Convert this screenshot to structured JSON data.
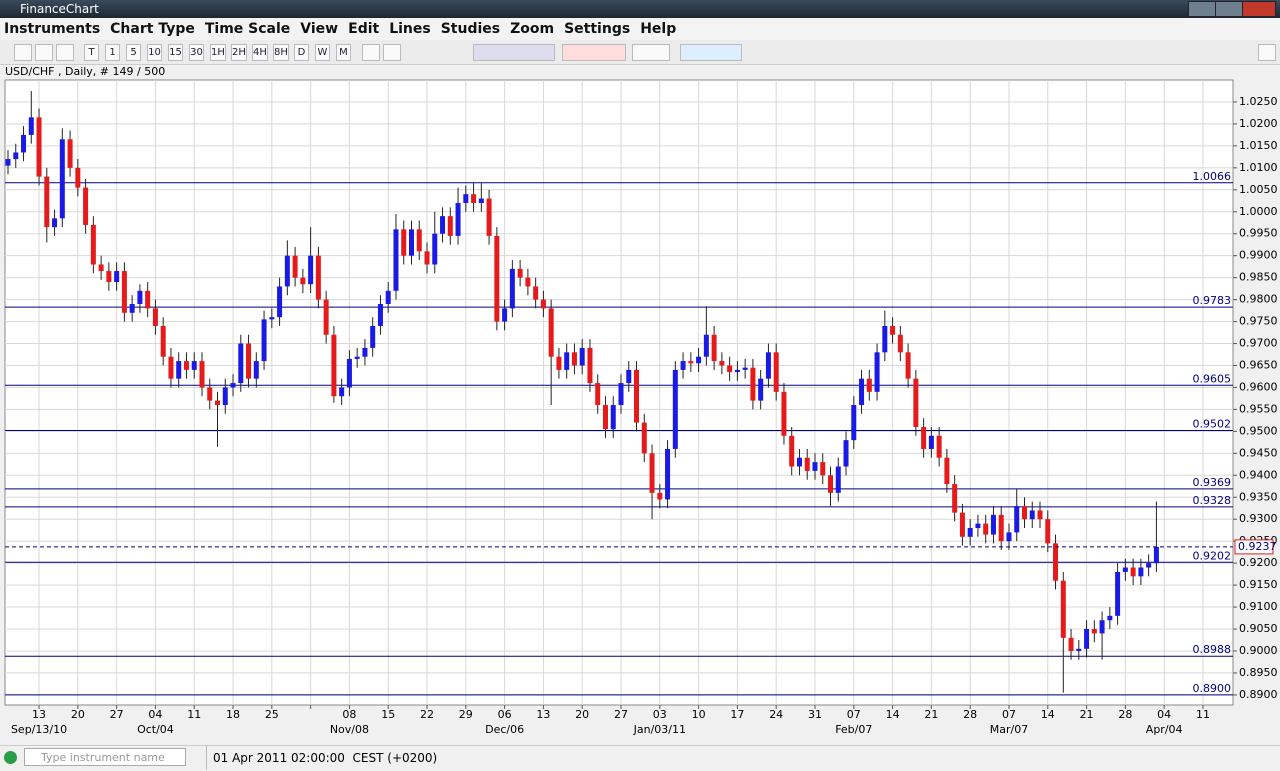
{
  "window": {
    "title": "FinanceChart"
  },
  "menu": [
    "Instruments",
    "Chart Type",
    "Time Scale",
    "View",
    "Edit",
    "Lines",
    "Studies",
    "Zoom",
    "Settings",
    "Help"
  ],
  "toolbar": [
    "T",
    "1",
    "5",
    "10",
    "15",
    "30",
    "1H",
    "2H",
    "4H",
    "8H",
    "D",
    "W",
    "M"
  ],
  "status": {
    "search_placeholder": "Type instrument name",
    "datetime": "01 Apr 2011 02:00:00  CEST (+0200)"
  },
  "chart_data": {
    "type": "candlestick",
    "title": "USD/CHF , Daily, # 149 / 500",
    "categories": [
      null,
      null,
      null,
      null,
      "13",
      null,
      null,
      null,
      null,
      "20",
      null,
      null,
      null,
      null,
      "27",
      null,
      null,
      null,
      null,
      "04",
      null,
      null,
      null,
      null,
      "11",
      null,
      null,
      null,
      null,
      "18",
      null,
      null,
      null,
      null,
      "25",
      null,
      null,
      null,
      null,
      null,
      null,
      null,
      null,
      null,
      "08",
      null,
      null,
      null,
      null,
      "15",
      null,
      null,
      null,
      null,
      "22",
      null,
      null,
      null,
      null,
      "29",
      null,
      null,
      null,
      null,
      "06",
      null,
      null,
      null,
      null,
      "13",
      null,
      null,
      null,
      null,
      "20",
      null,
      null,
      null,
      null,
      "27",
      null,
      null,
      null,
      null,
      "03",
      null,
      null,
      null,
      null,
      "10",
      null,
      null,
      null,
      null,
      "17",
      null,
      null,
      null,
      null,
      "24",
      null,
      null,
      null,
      null,
      "31",
      null,
      null,
      null,
      null,
      "07",
      null,
      null,
      null,
      null,
      "14",
      null,
      null,
      null,
      null,
      "21",
      null,
      null,
      null,
      null,
      "28",
      null,
      null,
      null,
      null,
      "07",
      null,
      null,
      null,
      null,
      "14",
      null,
      null,
      null,
      null,
      "21",
      null,
      null,
      null,
      null,
      "28",
      null,
      null,
      null,
      null,
      "04",
      null,
      null,
      null,
      null,
      "11",
      null,
      null,
      null,
      null
    ],
    "month_labels": [
      {
        "category": 4,
        "label": "Sep/13/10"
      },
      {
        "category": 19,
        "label": "Oct/04"
      },
      {
        "category": 44,
        "label": "Nov/08"
      },
      {
        "category": 64,
        "label": "Dec/06"
      },
      {
        "category": 84,
        "label": "Jan/03/11"
      },
      {
        "category": 109,
        "label": "Feb/07"
      },
      {
        "category": 129,
        "label": "Mar/07"
      },
      {
        "category": 149,
        "label": "Apr/04"
      }
    ],
    "open": [
      1.0105,
      1.012,
      1.0135,
      1.0175,
      1.0215,
      1.008,
      0.9965,
      0.9985,
      1.0165,
      1.01,
      1.0055,
      0.997,
      0.988,
      0.9865,
      0.984,
      0.9865,
      0.977,
      0.979,
      0.982,
      0.978,
      0.974,
      0.967,
      0.962,
      0.966,
      0.964,
      0.966,
      0.96,
      0.957,
      0.956,
      0.96,
      0.961,
      0.97,
      0.962,
      0.966,
      0.9755,
      0.976,
      0.983,
      0.99,
      0.985,
      0.9835,
      0.99,
      0.98,
      0.972,
      0.958,
      0.96,
      0.9665,
      0.967,
      0.969,
      0.974,
      0.979,
      0.982,
      0.996,
      0.99,
      0.996,
      0.991,
      0.988,
      0.995,
      0.999,
      0.9945,
      1.002,
      1.004,
      1.002,
      1.003,
      0.9945,
      0.975,
      0.978,
      0.987,
      0.985,
      0.983,
      0.98,
      0.978,
      0.967,
      0.964,
      0.968,
      0.965,
      0.969,
      0.961,
      0.956,
      0.9505,
      0.956,
      0.961,
      0.964,
      0.952,
      0.945,
      0.936,
      0.9345,
      0.946,
      0.964,
      0.966,
      0.9655,
      0.967,
      0.972,
      0.966,
      0.965,
      0.9635,
      0.964,
      0.9645,
      0.957,
      0.962,
      0.968,
      0.959,
      0.949,
      0.942,
      0.944,
      0.941,
      0.943,
      0.94,
      0.936,
      0.942,
      0.948,
      0.956,
      0.962,
      0.959,
      0.968,
      0.974,
      0.972,
      0.968,
      0.962,
      0.951,
      0.946,
      0.949,
      0.944,
      0.938,
      0.9315,
      0.926,
      0.928,
      0.929,
      0.9265,
      0.931,
      0.925,
      0.927,
      0.933,
      0.93,
      0.932,
      0.93,
      0.9245,
      0.916,
      0.903,
      0.9,
      0.9005,
      0.905,
      0.904,
      0.907,
      0.908,
      0.918,
      0.919,
      0.917,
      0.919,
      0.92,
      null,
      null,
      null,
      null,
      null,
      null,
      null,
      null,
      null,
      null
    ],
    "high": [
      1.014,
      1.0155,
      1.0195,
      1.0275,
      1.0235,
      1.01,
      1.0005,
      1.019,
      1.0185,
      1.012,
      1.0075,
      0.999,
      0.99,
      0.9885,
      0.9885,
      0.9885,
      0.981,
      0.9835,
      0.984,
      0.98,
      0.976,
      0.969,
      0.968,
      0.968,
      0.968,
      0.968,
      0.962,
      0.959,
      0.962,
      0.963,
      0.972,
      0.972,
      0.968,
      0.9775,
      0.978,
      0.985,
      0.9935,
      0.992,
      0.987,
      0.9965,
      0.992,
      0.982,
      0.974,
      0.962,
      0.9685,
      0.969,
      0.971,
      0.976,
      0.981,
      0.984,
      0.9995,
      0.998,
      0.998,
      0.998,
      0.993,
      1.0,
      1.001,
      1.001,
      1.0055,
      1.006,
      1.0065,
      1.0065,
      1.005,
      0.9965,
      0.98,
      0.989,
      0.989,
      0.987,
      0.985,
      0.982,
      0.98,
      0.969,
      0.97,
      0.97,
      0.971,
      0.971,
      0.963,
      0.958,
      0.958,
      0.963,
      0.966,
      0.966,
      0.954,
      0.947,
      0.938,
      0.948,
      0.966,
      0.968,
      0.968,
      0.969,
      0.9785,
      0.974,
      0.968,
      0.967,
      0.966,
      0.9665,
      0.9665,
      0.964,
      0.97,
      0.97,
      0.961,
      0.951,
      0.946,
      0.946,
      0.945,
      0.945,
      0.942,
      0.944,
      0.95,
      0.958,
      0.964,
      0.964,
      0.97,
      0.9775,
      0.976,
      0.974,
      0.97,
      0.964,
      0.953,
      0.951,
      0.951,
      0.946,
      0.94,
      0.9335,
      0.93,
      0.931,
      0.931,
      0.933,
      0.933,
      0.929,
      0.937,
      0.935,
      0.934,
      0.934,
      0.932,
      0.9265,
      0.918,
      0.905,
      0.9025,
      0.907,
      0.907,
      0.909,
      0.91,
      0.92,
      0.921,
      0.921,
      0.921,
      0.922,
      0.934,
      null,
      null,
      null,
      null,
      null,
      null,
      null,
      null,
      null,
      null
    ],
    "low": [
      1.0085,
      1.01,
      1.0115,
      1.0155,
      1.006,
      0.993,
      0.9945,
      0.9965,
      1.008,
      1.0035,
      0.995,
      0.986,
      0.9845,
      0.982,
      0.982,
      0.975,
      0.975,
      0.977,
      0.976,
      0.972,
      0.965,
      0.96,
      0.96,
      0.962,
      0.962,
      0.958,
      0.955,
      0.9465,
      0.954,
      0.958,
      0.959,
      0.96,
      0.96,
      0.964,
      0.9735,
      0.974,
      0.981,
      0.983,
      0.9815,
      0.9815,
      0.978,
      0.97,
      0.9565,
      0.956,
      0.958,
      0.9645,
      0.965,
      0.967,
      0.972,
      0.977,
      0.98,
      0.988,
      0.988,
      0.989,
      0.986,
      0.986,
      0.993,
      0.9925,
      0.9925,
      1.0,
      1.0,
      1.0,
      0.9925,
      0.973,
      0.973,
      0.976,
      0.983,
      0.981,
      0.978,
      0.976,
      0.956,
      0.962,
      0.962,
      0.963,
      0.963,
      0.959,
      0.954,
      0.9485,
      0.9485,
      0.954,
      0.959,
      0.95,
      0.943,
      0.93,
      0.9325,
      0.9325,
      0.944,
      0.962,
      0.9635,
      0.9635,
      0.965,
      0.964,
      0.963,
      0.9615,
      0.9615,
      0.962,
      0.955,
      0.955,
      0.96,
      0.957,
      0.947,
      0.94,
      0.94,
      0.939,
      0.939,
      0.938,
      0.933,
      0.934,
      0.94,
      0.946,
      0.954,
      0.957,
      0.957,
      0.966,
      0.97,
      0.966,
      0.96,
      0.949,
      0.944,
      0.944,
      0.942,
      0.936,
      0.9295,
      0.924,
      0.924,
      0.926,
      0.9245,
      0.9245,
      0.923,
      0.923,
      0.925,
      0.928,
      0.928,
      0.928,
      0.9225,
      0.914,
      0.8905,
      0.898,
      0.898,
      0.8985,
      0.902,
      0.898,
      0.905,
      0.906,
      0.916,
      0.915,
      0.915,
      0.917,
      0.918,
      null,
      null,
      null,
      null,
      null,
      null,
      null,
      null,
      null,
      null
    ],
    "close": [
      1.012,
      1.0135,
      1.0175,
      1.0215,
      1.008,
      0.9965,
      0.9985,
      1.0165,
      1.01,
      1.0055,
      0.997,
      0.988,
      0.9865,
      0.984,
      0.9865,
      0.977,
      0.979,
      0.982,
      0.978,
      0.974,
      0.967,
      0.962,
      0.966,
      0.964,
      0.966,
      0.96,
      0.957,
      0.956,
      0.96,
      0.961,
      0.97,
      0.962,
      0.966,
      0.9755,
      0.976,
      0.983,
      0.99,
      0.985,
      0.9835,
      0.99,
      0.98,
      0.972,
      0.958,
      0.96,
      0.9665,
      0.967,
      0.969,
      0.974,
      0.979,
      0.982,
      0.996,
      0.99,
      0.996,
      0.991,
      0.988,
      0.995,
      0.999,
      0.9945,
      1.002,
      1.004,
      1.002,
      1.003,
      0.9945,
      0.975,
      0.978,
      0.987,
      0.985,
      0.983,
      0.98,
      0.978,
      0.967,
      0.964,
      0.968,
      0.965,
      0.969,
      0.961,
      0.956,
      0.9505,
      0.956,
      0.961,
      0.964,
      0.952,
      0.945,
      0.936,
      0.9345,
      0.946,
      0.964,
      0.966,
      0.9655,
      0.967,
      0.972,
      0.966,
      0.965,
      0.9635,
      0.964,
      0.9645,
      0.957,
      0.962,
      0.968,
      0.959,
      0.949,
      0.942,
      0.944,
      0.941,
      0.943,
      0.94,
      0.936,
      0.942,
      0.948,
      0.956,
      0.962,
      0.959,
      0.968,
      0.974,
      0.972,
      0.968,
      0.962,
      0.951,
      0.946,
      0.949,
      0.944,
      0.938,
      0.9315,
      0.926,
      0.928,
      0.929,
      0.9265,
      0.931,
      0.925,
      0.927,
      0.933,
      0.93,
      0.932,
      0.93,
      0.9245,
      0.916,
      0.903,
      0.9,
      0.9005,
      0.905,
      0.904,
      0.907,
      0.908,
      0.918,
      0.919,
      0.917,
      0.919,
      0.92,
      0.9237,
      null,
      null,
      null,
      null,
      null,
      null,
      null,
      null,
      null,
      null
    ],
    "up_color": "#1a1ae6",
    "down_color": "#e61a1a",
    "level_color": "#000080",
    "grid": true,
    "ylim": [
      0.8877,
      1.03
    ],
    "yticks": [
      {
        "value": 0.89,
        "label": "0.8900"
      },
      {
        "value": 0.895,
        "label": "0.8950"
      },
      {
        "value": 0.9,
        "label": "0.9000"
      },
      {
        "value": 0.905,
        "label": "0.9050"
      },
      {
        "value": 0.91,
        "label": "0.9100"
      },
      {
        "value": 0.915,
        "label": "0.9150"
      },
      {
        "value": 0.92,
        "label": "0.9200"
      },
      {
        "value": 0.925,
        "label": "0.9250"
      },
      {
        "value": 0.93,
        "label": "0.9300"
      },
      {
        "value": 0.935,
        "label": "0.9350"
      },
      {
        "value": 0.94,
        "label": "0.9400"
      },
      {
        "value": 0.945,
        "label": "0.9450"
      },
      {
        "value": 0.95,
        "label": "0.9500"
      },
      {
        "value": 0.955,
        "label": "0.9550"
      },
      {
        "value": 0.96,
        "label": "0.9600"
      },
      {
        "value": 0.965,
        "label": "0.9650"
      },
      {
        "value": 0.97,
        "label": "0.9700"
      },
      {
        "value": 0.975,
        "label": "0.9750"
      },
      {
        "value": 0.98,
        "label": "0.9800"
      },
      {
        "value": 0.985,
        "label": "0.9850"
      },
      {
        "value": 0.99,
        "label": "0.9900"
      },
      {
        "value": 0.995,
        "label": "0.9950"
      },
      {
        "value": 1.0,
        "label": "1.0000"
      },
      {
        "value": 1.005,
        "label": "1.0050"
      },
      {
        "value": 1.01,
        "label": "1.0100"
      },
      {
        "value": 1.015,
        "label": "1.0150"
      },
      {
        "value": 1.02,
        "label": "1.0200"
      },
      {
        "value": 1.025,
        "label": "1.0250"
      }
    ],
    "levels": [
      1.0066,
      0.9783,
      0.9605,
      0.9502,
      0.9369,
      0.9328,
      0.9202,
      0.8988,
      {
        "value": 0.89,
        "label": "0.8900"
      }
    ],
    "last_price": 0.9237
  }
}
